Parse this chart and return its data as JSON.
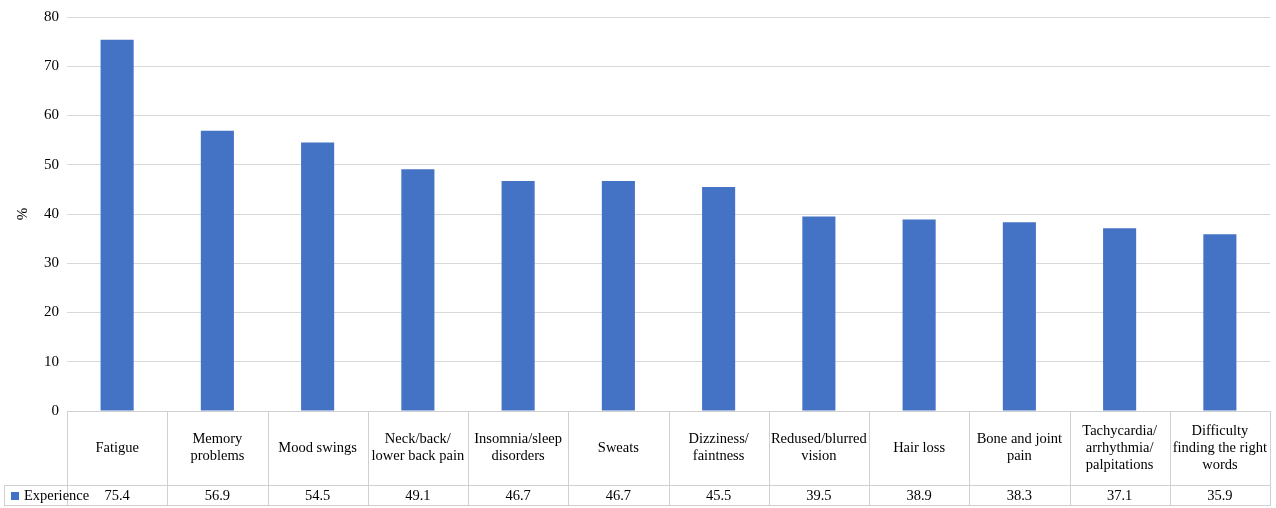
{
  "chart_data": {
    "type": "bar",
    "ylabel": "%",
    "categories": [
      "Fatigue",
      "Memory problems",
      "Mood swings",
      "Neck/back/lower back pain",
      "Insomnia/sleep disorders",
      "Sweats",
      "Dizziness/faintness",
      "Redused/blurred vision",
      "Hair loss",
      "Bone and joint pain",
      "Tachycardia/arrhythmia/palpitations",
      "Difficulty finding the right words"
    ],
    "series": [
      {
        "name": "Experience",
        "color": "#4472c4",
        "values": [
          75.4,
          56.9,
          54.5,
          49.1,
          46.7,
          46.7,
          45.5,
          39.5,
          38.9,
          38.3,
          37.1,
          35.9
        ]
      }
    ],
    "ylim": [
      0,
      80
    ],
    "yticks": [
      0,
      10,
      20,
      30,
      40,
      50,
      60,
      70,
      80
    ],
    "grid": "y",
    "legend": "bottom",
    "data_labels": true
  }
}
